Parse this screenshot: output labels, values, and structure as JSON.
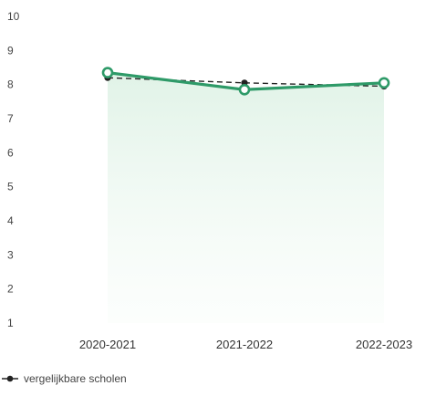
{
  "chart_data": {
    "type": "line",
    "categories": [
      "2020-2021",
      "2021-2022",
      "2022-2023"
    ],
    "yticks": [
      "1",
      "2",
      "3",
      "4",
      "5",
      "6",
      "7",
      "8",
      "9",
      "10"
    ],
    "ylim": [
      1,
      10
    ],
    "series": [
      {
        "role": "school",
        "values": [
          8.35,
          7.85,
          8.05
        ],
        "color": "#2e9a68",
        "style": "solid-open-markers"
      },
      {
        "name": "vergelijkbare scholen",
        "values": [
          8.2,
          8.05,
          7.95
        ],
        "color": "#222222",
        "style": "dashed-filled-markers"
      }
    ],
    "fill_color": "#e6f4ea",
    "legend_position": "bottom-left"
  }
}
